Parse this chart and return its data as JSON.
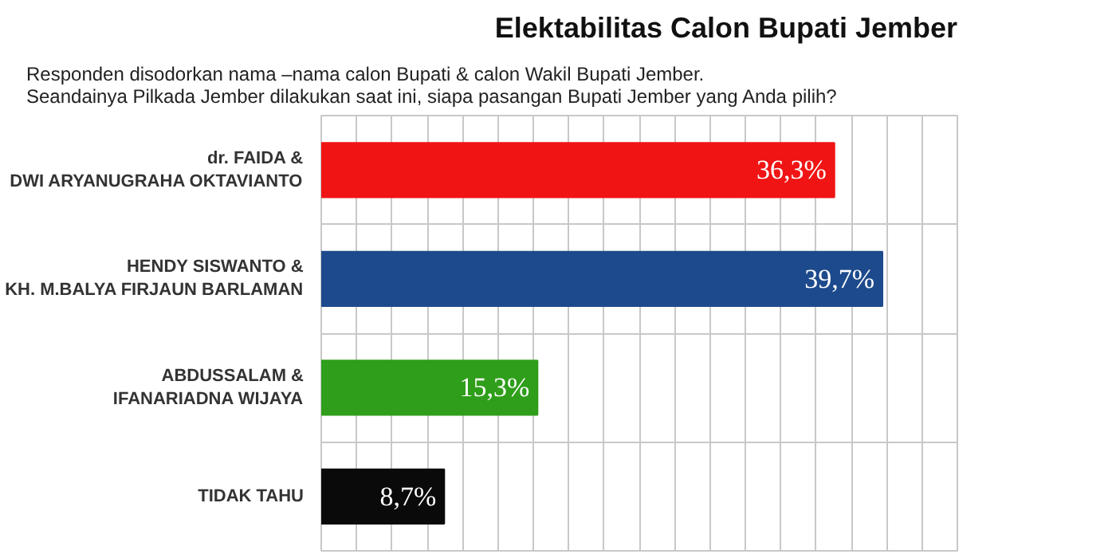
{
  "chart_data": {
    "type": "bar",
    "orientation": "horizontal",
    "title": "Elektabilitas Calon Bupati Jember",
    "subtitle": "Responden disodorkan nama –nama calon Bupati & calon Wakil Bupati Jember.\nSeandainya Pilkada Jember dilakukan saat ini, siapa pasangan Bupati Jember yang Anda pilih?",
    "categories": [
      "dr. FAIDA &\nDWI ARYANUGRAHA OKTAVIANTO",
      "HENDY SISWANTO &\nKH. M.BALYA FIRJAUN BARLAMAN",
      "ABDUSSALAM &\nIFANARIADNA WIJAYA",
      "TIDAK TAHU"
    ],
    "values": [
      36.3,
      39.7,
      15.3,
      8.7
    ],
    "value_labels": [
      "36,3%",
      "39,7%",
      "15,3%",
      "8,7%"
    ],
    "colors": [
      "#f01414",
      "#1d4a8c",
      "#2f9e1a",
      "#0a0a0a"
    ],
    "xlim": [
      0,
      45
    ],
    "xticks": [
      {
        "value": 2.5,
        "label": null
      },
      {
        "value": 5,
        "label": null
      },
      {
        "value": 7.5,
        "label": null
      },
      {
        "value": 10,
        "label": null
      },
      {
        "value": 12.5,
        "label": null
      },
      {
        "value": 15,
        "label": null
      },
      {
        "value": 17.5,
        "label": null
      },
      {
        "value": 20,
        "label": null
      },
      {
        "value": 22.5,
        "label": null
      },
      {
        "value": 25,
        "label": null
      },
      {
        "value": 27.5,
        "label": null
      },
      {
        "value": 30,
        "label": null
      },
      {
        "value": 32.5,
        "label": null
      },
      {
        "value": 35,
        "label": null
      },
      {
        "value": 37.5,
        "label": null
      },
      {
        "value": 40,
        "label": null
      },
      {
        "value": 42.5,
        "label": null
      }
    ],
    "tick_labels": "y",
    "grid": true
  }
}
